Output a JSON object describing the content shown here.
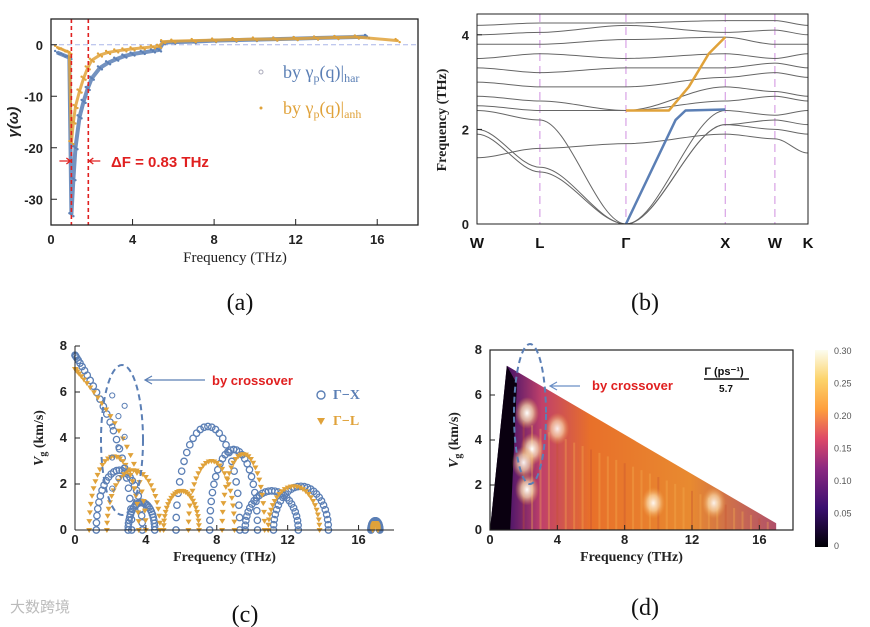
{
  "watermark": "大数跨境",
  "chart_data": [
    {
      "panel": "a",
      "caption": "(a)",
      "type": "scatter",
      "xlabel": "Frequency (THz)",
      "ylabel": "γ(ω)",
      "xlim": [
        0,
        18
      ],
      "ylim": [
        -35,
        5
      ],
      "xticks": [
        0,
        4,
        8,
        12,
        16
      ],
      "yticks": [
        0,
        -10,
        -20,
        -30
      ],
      "annotation": "ΔF = 0.83 THz",
      "vlines": [
        1.0,
        1.83
      ],
      "legend_position": "right",
      "series": [
        {
          "name": "by γp(q)|har",
          "label_main": "by γ",
          "label_sub1": "p",
          "label_mid": "(q)|",
          "label_sub2": "har",
          "color": "#5b7fb5",
          "x": [
            0.3,
            0.6,
            0.9,
            1.0,
            1.1,
            1.2,
            1.4,
            1.6,
            1.8,
            2.0,
            2.4,
            2.8,
            3.2,
            3.6,
            4.0,
            4.5,
            5.0,
            5.3,
            5.5,
            6.0,
            7.0,
            8.0,
            9.0,
            10.0,
            11.0,
            12.0,
            13.0,
            14.0,
            15.0,
            15.5
          ],
          "y": [
            -1.5,
            -2.0,
            -2.5,
            -33,
            -26,
            -20,
            -14,
            -11,
            -8.5,
            -6.5,
            -4.5,
            -3.5,
            -2.8,
            -2.2,
            -1.8,
            -1.5,
            -1.2,
            -1.0,
            0.4,
            0.5,
            0.6,
            0.8,
            0.9,
            1.0,
            1.1,
            1.2,
            1.3,
            1.4,
            1.5,
            1.6
          ]
        },
        {
          "name": "by γp(q)|anh",
          "label_main": "by γ",
          "label_sub1": "p",
          "label_mid": "(q)|",
          "label_sub2": "anh",
          "color": "#e0a23a",
          "x": [
            0.3,
            0.6,
            0.9,
            1.0,
            1.1,
            1.2,
            1.4,
            1.6,
            1.8,
            2.0,
            2.4,
            2.8,
            3.2,
            3.6,
            4.0,
            4.5,
            5.0,
            5.3,
            5.5,
            6.0,
            7.0,
            8.0,
            9.0,
            10.0,
            11.0,
            12.0,
            13.0,
            14.0,
            15.0,
            17.0
          ],
          "y": [
            -0.5,
            -1.0,
            -1.5,
            -19,
            -15,
            -12,
            -9,
            -6.5,
            -4.5,
            -3.0,
            -2.0,
            -1.5,
            -1.2,
            -1.0,
            -0.8,
            -0.6,
            -0.4,
            -0.3,
            0.6,
            0.7,
            0.8,
            0.9,
            1.0,
            1.1,
            1.1,
            1.2,
            1.3,
            1.4,
            1.5,
            0.8
          ]
        }
      ]
    },
    {
      "panel": "b",
      "caption": "(b)",
      "type": "line",
      "ylabel": "Frequency (THz)",
      "ylim": [
        0,
        4.5
      ],
      "yticks": [
        0,
        2,
        4
      ],
      "kpoints": [
        "W",
        "L",
        "Γ",
        "X",
        "W",
        "K"
      ],
      "kpos": [
        0,
        0.19,
        0.45,
        0.75,
        0.9,
        1.0
      ],
      "bands_gray": [
        [
          1.9,
          1.1,
          0.0,
          2.1,
          2.0,
          1.9
        ],
        [
          2.0,
          1.2,
          0.0,
          2.1,
          2.2,
          2.1
        ],
        [
          2.4,
          2.2,
          0.0,
          2.4,
          2.3,
          2.4
        ],
        [
          2.5,
          2.4,
          2.4,
          2.6,
          2.7,
          2.6
        ],
        [
          2.7,
          2.6,
          2.4,
          2.9,
          2.8,
          2.7
        ],
        [
          3.0,
          2.9,
          2.9,
          3.1,
          3.2,
          3.1
        ],
        [
          3.3,
          3.2,
          3.3,
          3.3,
          3.4,
          3.3
        ],
        [
          3.5,
          3.6,
          3.5,
          3.6,
          3.5,
          3.6
        ],
        [
          3.8,
          3.8,
          3.9,
          3.95,
          3.8,
          3.8
        ],
        [
          4.0,
          4.05,
          4.2,
          4.05,
          4.1,
          4.0
        ],
        [
          4.2,
          4.25,
          4.25,
          4.3,
          4.3,
          4.2
        ],
        [
          1.4,
          1.6,
          1.7,
          1.9,
          1.8,
          1.5
        ]
      ],
      "highlight": [
        {
          "name": "acoustic-branch",
          "color": "#5b7fb5",
          "k": [
            0.45,
            0.6,
            0.63,
            0.75
          ],
          "f": [
            0.0,
            2.2,
            2.4,
            2.42
          ]
        },
        {
          "name": "optical-branch",
          "color": "#e0a23a",
          "k": [
            0.45,
            0.58,
            0.64,
            0.7,
            0.75
          ],
          "f": [
            2.4,
            2.4,
            2.9,
            3.6,
            3.95
          ]
        }
      ]
    },
    {
      "panel": "c",
      "caption": "(c)",
      "type": "scatter",
      "xlabel": "Frequency (THz)",
      "ylabel": "Vg (km/s)",
      "ylabel_main": "V",
      "ylabel_sub": "g",
      "ylabel_rest": " (km/s)",
      "xlim": [
        0,
        18
      ],
      "ylim": [
        0,
        8
      ],
      "xticks": [
        0,
        4,
        8,
        12,
        16
      ],
      "yticks": [
        0,
        2,
        4,
        6,
        8
      ],
      "annotation": "by crossover",
      "series": [
        {
          "name": "Γ−X",
          "marker": "circle",
          "color": "#5b7fb5",
          "arcs": [
            [
              0.0,
              3.2,
              7.6
            ],
            [
              1.2,
              3.8,
              2.6
            ],
            [
              3.0,
              4.5,
              1.2
            ],
            [
              5.7,
              9.3,
              4.5
            ],
            [
              7.6,
              10.3,
              3.5
            ],
            [
              9.6,
              12.6,
              1.7
            ],
            [
              11.2,
              14.3,
              1.9
            ],
            [
              16.7,
              17.2,
              0.4
            ]
          ]
        },
        {
          "name": "Γ−L",
          "marker": "triangle",
          "color": "#e0a23a",
          "arcs": [
            [
              0.0,
              4.0,
              7.0
            ],
            [
              0.8,
              3.6,
              3.2
            ],
            [
              1.8,
              4.8,
              2.6
            ],
            [
              5.0,
              7.0,
              1.7
            ],
            [
              6.4,
              9.0,
              3.0
            ],
            [
              8.3,
              10.7,
              3.3
            ],
            [
              10.9,
              13.8,
              1.9
            ],
            [
              16.8,
              17.1,
              0.3
            ]
          ]
        }
      ]
    },
    {
      "panel": "d",
      "caption": "(d)",
      "type": "heatmap",
      "xlabel": "Frequency (THz)",
      "ylabel_main": "V",
      "ylabel_sub": "g",
      "ylabel_rest": " (km/s)",
      "xlim": [
        0,
        18
      ],
      "ylim": [
        0,
        8
      ],
      "xticks": [
        0,
        4,
        8,
        12,
        16
      ],
      "yticks": [
        0,
        2,
        4,
        6,
        8
      ],
      "annotation": "by crossover",
      "colorbar_title": "Γ (ps⁻¹)",
      "colorbar_divisor": "5.7",
      "colorbar_ticks": [
        "0.30",
        "0.25",
        "0.20",
        "0.15",
        "0.10",
        "0.05",
        "0"
      ],
      "colorbar_range": [
        0,
        0.3
      ],
      "region": {
        "x": [
          0,
          1.0,
          17.0,
          17.0
        ],
        "y": [
          0,
          7.3,
          0.3,
          0
        ]
      },
      "hotspots": [
        [
          2.2,
          5.2,
          0.3
        ],
        [
          2.5,
          3.6,
          0.3
        ],
        [
          2.0,
          3.0,
          0.28
        ],
        [
          2.2,
          1.8,
          0.3
        ],
        [
          9.7,
          1.2,
          0.28
        ],
        [
          13.3,
          1.2,
          0.27
        ],
        [
          4.0,
          4.5,
          0.27
        ]
      ]
    }
  ]
}
